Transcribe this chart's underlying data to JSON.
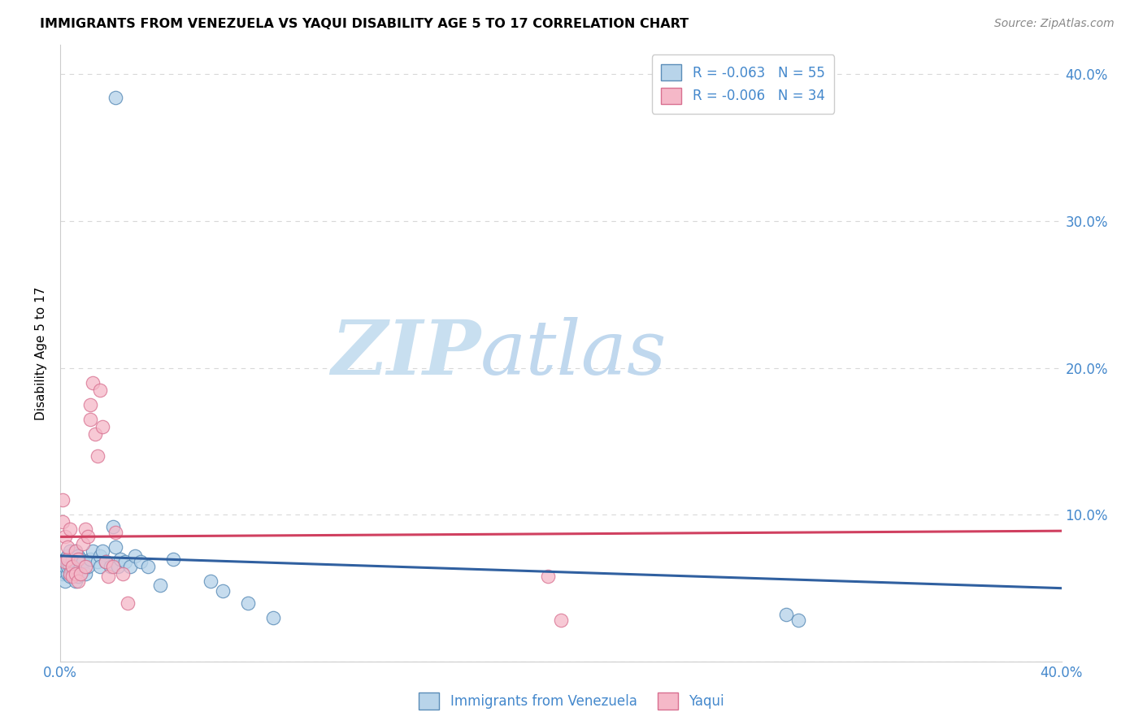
{
  "title": "IMMIGRANTS FROM VENEZUELA VS YAQUI DISABILITY AGE 5 TO 17 CORRELATION CHART",
  "source": "Source: ZipAtlas.com",
  "ylabel": "Disability Age 5 to 17",
  "xlim": [
    0.0,
    0.4
  ],
  "ylim": [
    0.0,
    0.42
  ],
  "ytick_vals": [
    0.0,
    0.1,
    0.2,
    0.3,
    0.4
  ],
  "xtick_vals": [
    0.0,
    0.1,
    0.2,
    0.3,
    0.4
  ],
  "blue_fill": "#b8d4ea",
  "blue_edge": "#5b8db8",
  "blue_line": "#3060a0",
  "pink_fill": "#f5b8c8",
  "pink_edge": "#d87090",
  "pink_line": "#d04060",
  "legend_blue_label": "R = -0.063   N = 55",
  "legend_pink_label": "R = -0.006   N = 34",
  "bottom_legend_blue": "Immigrants from Venezuela",
  "bottom_legend_pink": "Yaqui",
  "blue_x": [
    0.001,
    0.001,
    0.002,
    0.002,
    0.002,
    0.003,
    0.003,
    0.003,
    0.003,
    0.004,
    0.004,
    0.004,
    0.005,
    0.005,
    0.005,
    0.006,
    0.006,
    0.006,
    0.006,
    0.007,
    0.007,
    0.007,
    0.008,
    0.008,
    0.008,
    0.009,
    0.009,
    0.01,
    0.011,
    0.012,
    0.013,
    0.015,
    0.016,
    0.016,
    0.017,
    0.018,
    0.02,
    0.021,
    0.022,
    0.023,
    0.024,
    0.026,
    0.028,
    0.03,
    0.032,
    0.035,
    0.04,
    0.045,
    0.06,
    0.065,
    0.075,
    0.085,
    0.29,
    0.295,
    0.022
  ],
  "blue_y": [
    0.067,
    0.06,
    0.065,
    0.07,
    0.055,
    0.06,
    0.065,
    0.068,
    0.072,
    0.058,
    0.065,
    0.075,
    0.06,
    0.065,
    0.07,
    0.055,
    0.06,
    0.065,
    0.075,
    0.058,
    0.062,
    0.072,
    0.06,
    0.065,
    0.07,
    0.062,
    0.068,
    0.06,
    0.065,
    0.07,
    0.075,
    0.068,
    0.072,
    0.065,
    0.075,
    0.068,
    0.065,
    0.092,
    0.078,
    0.065,
    0.07,
    0.068,
    0.065,
    0.072,
    0.068,
    0.065,
    0.052,
    0.07,
    0.055,
    0.048,
    0.04,
    0.03,
    0.032,
    0.028,
    0.384
  ],
  "pink_x": [
    0.001,
    0.001,
    0.002,
    0.002,
    0.003,
    0.003,
    0.004,
    0.004,
    0.005,
    0.005,
    0.006,
    0.006,
    0.007,
    0.007,
    0.008,
    0.009,
    0.01,
    0.01,
    0.011,
    0.012,
    0.012,
    0.013,
    0.014,
    0.015,
    0.016,
    0.017,
    0.018,
    0.019,
    0.021,
    0.022,
    0.025,
    0.027,
    0.195,
    0.2
  ],
  "pink_y": [
    0.095,
    0.11,
    0.068,
    0.085,
    0.07,
    0.078,
    0.06,
    0.09,
    0.065,
    0.058,
    0.06,
    0.075,
    0.07,
    0.055,
    0.06,
    0.08,
    0.065,
    0.09,
    0.085,
    0.165,
    0.175,
    0.19,
    0.155,
    0.14,
    0.185,
    0.16,
    0.068,
    0.058,
    0.065,
    0.088,
    0.06,
    0.04,
    0.058,
    0.028
  ],
  "blue_trendline_x": [
    0.0,
    0.4
  ],
  "blue_trendline_y": [
    0.072,
    0.05
  ],
  "pink_trendline_x": [
    0.0,
    0.4
  ],
  "pink_trendline_y": [
    0.085,
    0.089
  ],
  "watermark_zip": "ZIP",
  "watermark_atlas": "atlas",
  "watermark_color": "#c8dff0",
  "grid_color": "#d8d8d8",
  "axis_label_color": "#4488cc",
  "bg_color": "#ffffff"
}
